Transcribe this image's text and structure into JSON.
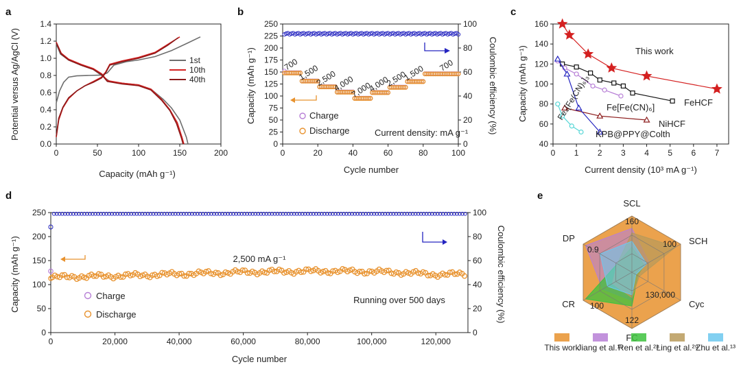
{
  "colors": {
    "grey": "#6d6d6d",
    "red": "#d42020",
    "darkred": "#8b1a1a",
    "orange": "#e8922e",
    "blue": "#2424c0",
    "purple": "#b77fd6",
    "cyan": "#55d6d6",
    "black": "#111111",
    "green": "#3ec23e",
    "tan": "#b89a5a",
    "lightblue": "#6cc8ef"
  },
  "chart_data": [
    {
      "panel": "a",
      "type": "line",
      "xlabel": "Capacity (mAh g⁻¹)",
      "ylabel": "Potential versus Ag/AgCl (V)",
      "xlim": [
        0,
        200
      ],
      "ylim": [
        0,
        1.4
      ],
      "xticks": [
        0,
        50,
        100,
        150,
        200
      ],
      "yticks": [
        0,
        0.2,
        0.4,
        0.6,
        0.8,
        1.0,
        1.2,
        1.4
      ],
      "series": [
        {
          "name": "1st",
          "color": "grey",
          "charge": [
            [
              0,
              0.48
            ],
            [
              4,
              0.62
            ],
            [
              9,
              0.72
            ],
            [
              15,
              0.78
            ],
            [
              25,
              0.795
            ],
            [
              40,
              0.8
            ],
            [
              55,
              0.805
            ],
            [
              62,
              0.83
            ],
            [
              70,
              0.92
            ],
            [
              85,
              0.96
            ],
            [
              100,
              0.98
            ],
            [
              120,
              1.02
            ],
            [
              140,
              1.09
            ],
            [
              160,
              1.18
            ],
            [
              175,
              1.25
            ]
          ],
          "discharge": [
            [
              0,
              1.17
            ],
            [
              5,
              1.05
            ],
            [
              15,
              0.98
            ],
            [
              30,
              0.92
            ],
            [
              45,
              0.87
            ],
            [
              55,
              0.8
            ],
            [
              65,
              0.73
            ],
            [
              80,
              0.71
            ],
            [
              100,
              0.69
            ],
            [
              115,
              0.64
            ],
            [
              130,
              0.52
            ],
            [
              140,
              0.42
            ],
            [
              150,
              0.28
            ],
            [
              158,
              0.08
            ],
            [
              160,
              0
            ]
          ]
        },
        {
          "name": "10th",
          "color": "red",
          "charge": [
            [
              0,
              0.08
            ],
            [
              3,
              0.28
            ],
            [
              8,
              0.42
            ],
            [
              15,
              0.53
            ],
            [
              25,
              0.62
            ],
            [
              35,
              0.68
            ],
            [
              45,
              0.73
            ],
            [
              55,
              0.78
            ],
            [
              60,
              0.84
            ],
            [
              65,
              0.93
            ],
            [
              80,
              0.97
            ],
            [
              100,
              1.01
            ],
            [
              120,
              1.07
            ],
            [
              135,
              1.16
            ],
            [
              150,
              1.25
            ]
          ],
          "discharge": [
            [
              0,
              1.19
            ],
            [
              6,
              1.06
            ],
            [
              15,
              0.99
            ],
            [
              30,
              0.93
            ],
            [
              45,
              0.88
            ],
            [
              55,
              0.82
            ],
            [
              62,
              0.74
            ],
            [
              80,
              0.71
            ],
            [
              100,
              0.69
            ],
            [
              115,
              0.64
            ],
            [
              128,
              0.52
            ],
            [
              138,
              0.4
            ],
            [
              147,
              0.25
            ],
            [
              153,
              0.07
            ],
            [
              155,
              0
            ]
          ]
        },
        {
          "name": "40th",
          "color": "darkred",
          "charge": [
            [
              0,
              0.09
            ],
            [
              3,
              0.3
            ],
            [
              8,
              0.43
            ],
            [
              15,
              0.54
            ],
            [
              25,
              0.62
            ],
            [
              35,
              0.68
            ],
            [
              45,
              0.72
            ],
            [
              55,
              0.77
            ],
            [
              60,
              0.83
            ],
            [
              65,
              0.92
            ],
            [
              80,
              0.96
            ],
            [
              100,
              1.0
            ],
            [
              120,
              1.06
            ],
            [
              135,
              1.15
            ],
            [
              148,
              1.24
            ]
          ],
          "discharge": [
            [
              0,
              1.18
            ],
            [
              6,
              1.05
            ],
            [
              15,
              0.98
            ],
            [
              30,
              0.92
            ],
            [
              45,
              0.87
            ],
            [
              55,
              0.81
            ],
            [
              62,
              0.73
            ],
            [
              80,
              0.7
            ],
            [
              100,
              0.68
            ],
            [
              115,
              0.63
            ],
            [
              128,
              0.51
            ],
            [
              138,
              0.39
            ],
            [
              146,
              0.24
            ],
            [
              152,
              0.07
            ],
            [
              154,
              0
            ]
          ]
        }
      ],
      "legend": [
        "1st",
        "10th",
        "40th"
      ]
    },
    {
      "panel": "b",
      "type": "scatter",
      "xlabel": "Cycle number",
      "ylabel": "Capacity (mAh g⁻¹)",
      "y2label": "Coulombic efficiency (%)",
      "xlim": [
        0,
        100
      ],
      "ylim": [
        0,
        250
      ],
      "y2lim": [
        0,
        100
      ],
      "xticks": [
        0,
        20,
        40,
        60,
        80,
        100
      ],
      "yticks": [
        0,
        25,
        50,
        75,
        100,
        125,
        150,
        175,
        200,
        225,
        250
      ],
      "y2ticks": [
        0,
        20,
        40,
        60,
        80,
        100
      ],
      "segments": [
        {
          "rate": "700",
          "start": 1,
          "end": 10,
          "capacity": 148
        },
        {
          "rate": "1,500",
          "start": 11,
          "end": 20,
          "capacity": 131
        },
        {
          "rate": "2,500",
          "start": 21,
          "end": 30,
          "capacity": 119
        },
        {
          "rate": "4,000",
          "start": 31,
          "end": 40,
          "capacity": 108
        },
        {
          "rate": "7,000",
          "start": 41,
          "end": 50,
          "capacity": 95
        },
        {
          "rate": "4,000",
          "start": 51,
          "end": 60,
          "capacity": 107
        },
        {
          "rate": "2,500",
          "start": 61,
          "end": 70,
          "capacity": 118
        },
        {
          "rate": "1,500",
          "start": 71,
          "end": 80,
          "capacity": 130
        },
        {
          "rate": "700",
          "start": 81,
          "end": 100,
          "capacity": 146
        }
      ],
      "coulombic_efficiency": 90,
      "legend": [
        "Charge",
        "Discharge"
      ],
      "annotation": "Current density: mA g⁻¹"
    },
    {
      "panel": "c",
      "type": "line",
      "xlabel": "Current density (10³ mA g⁻¹)",
      "ylabel": "Capacity (mAh g⁻¹)",
      "xlim": [
        0,
        7.5
      ],
      "ylim": [
        40,
        160
      ],
      "xticks": [
        0,
        1,
        2,
        3,
        4,
        5,
        6,
        7
      ],
      "yticks": [
        40,
        60,
        80,
        100,
        120,
        140,
        160
      ],
      "series": [
        {
          "name": "This work",
          "color": "red",
          "marker": "star",
          "x": [
            0.4,
            0.7,
            1.5,
            2.5,
            4.0,
            7.0
          ],
          "y": [
            160,
            149,
            130,
            116,
            108,
            95
          ]
        },
        {
          "name": "FeHCF",
          "color": "black",
          "marker": "square",
          "x": [
            0.4,
            1.0,
            1.6,
            2.0,
            2.6,
            3.0,
            3.4,
            5.1
          ],
          "y": [
            120,
            117,
            111,
            104,
            101,
            98,
            91,
            83
          ]
        },
        {
          "name": "Fe[Fe(CN)₆]",
          "color": "purple",
          "marker": "circle",
          "x": [
            0.2,
            0.5,
            1.0,
            1.7,
            2.2,
            2.9
          ],
          "y": [
            123,
            116,
            110,
            98,
            94,
            88
          ]
        },
        {
          "name": "NiHCF",
          "color": "darkred",
          "marker": "triangle",
          "x": [
            0.5,
            2.0,
            4.0
          ],
          "y": [
            76,
            68,
            64
          ]
        },
        {
          "name": "Fe₄[Fe(CN)₆]₃",
          "color": "cyan",
          "marker": "circle",
          "x": [
            0.2,
            0.4,
            0.8,
            1.2
          ],
          "y": [
            80,
            68,
            58,
            52
          ]
        },
        {
          "name": "KPB@PPY@Colth",
          "color": "blue",
          "marker": "triangle",
          "x": [
            0.2,
            0.6,
            1.1,
            2.0
          ],
          "y": [
            125,
            110,
            76,
            52
          ]
        }
      ]
    },
    {
      "panel": "d",
      "type": "scatter",
      "xlabel": "Cycle number",
      "ylabel": "Capacity (mAh g⁻¹)",
      "y2label": "Coulombic efficiency (%)",
      "xlim": [
        0,
        130000
      ],
      "ylim": [
        0,
        250
      ],
      "y2lim": [
        0,
        100
      ],
      "xticks": [
        0,
        20000,
        40000,
        60000,
        80000,
        100000,
        120000
      ],
      "xticklabels": [
        "0",
        "20,000",
        "40,000",
        "60,000",
        "80,000",
        "100,000",
        "120,000"
      ],
      "yticks": [
        0,
        50,
        100,
        150,
        200,
        250
      ],
      "y2ticks": [
        0,
        20,
        40,
        60,
        80,
        100
      ],
      "capacity_trend": [
        [
          0,
          115
        ],
        [
          10000,
          117
        ],
        [
          20000,
          118
        ],
        [
          30000,
          120
        ],
        [
          40000,
          122
        ],
        [
          50000,
          124
        ],
        [
          60000,
          126
        ],
        [
          70000,
          127
        ],
        [
          80000,
          128
        ],
        [
          90000,
          128
        ],
        [
          100000,
          127
        ],
        [
          110000,
          125
        ],
        [
          120000,
          121
        ],
        [
          130000,
          122
        ]
      ],
      "coulombic_efficiency": 99,
      "first_cycle": {
        "charge": 128,
        "discharge": 113,
        "efficiency": 88
      },
      "legend": [
        "Charge",
        "Discharge"
      ],
      "annotations": [
        "2,500 mA g⁻¹",
        "Running over 500 days"
      ]
    },
    {
      "panel": "e",
      "type": "radar",
      "axes": [
        "SCL",
        "SCH",
        "Cyc",
        "FC",
        "CR",
        "DP"
      ],
      "axis_values": [
        "160",
        "100",
        "130,000",
        "122",
        "100",
        "0.9"
      ],
      "series": [
        {
          "name": "This work",
          "color": "orange",
          "values": [
            1.0,
            1.0,
            1.0,
            1.0,
            1.0,
            1.0
          ]
        },
        {
          "name": "Jiang et al.¹⁵",
          "color": "purple",
          "values": [
            0.78,
            0.35,
            0.05,
            0.5,
            0.6,
            0.95
          ]
        },
        {
          "name": "Ren et al.²⁸",
          "color": "green",
          "values": [
            0.45,
            0.25,
            0.12,
            0.6,
            0.95,
            0.3
          ]
        },
        {
          "name": "Ling et al.²⁹",
          "color": "tan",
          "values": [
            0.7,
            0.9,
            0.15,
            0.45,
            0.4,
            0.3
          ]
        },
        {
          "name": "Zhu et al.¹³",
          "color": "lightblue",
          "values": [
            0.55,
            0.3,
            0.08,
            0.4,
            0.5,
            0.65
          ]
        }
      ]
    }
  ]
}
